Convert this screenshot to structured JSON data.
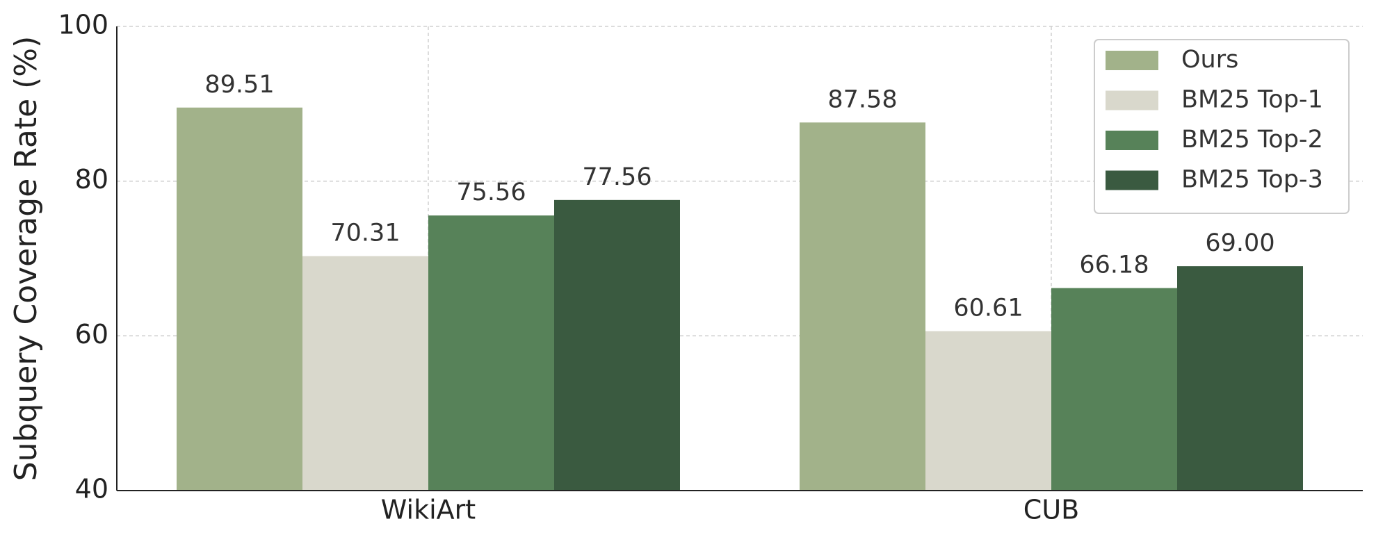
{
  "chart_data": {
    "type": "bar",
    "y_label": "Subquery Coverage Rate (%)",
    "categories": [
      "WikiArt",
      "CUB"
    ],
    "series": [
      {
        "name": "Ours",
        "color": "#a2b28a",
        "values": [
          89.51,
          87.58
        ],
        "value_labels": [
          "89.51",
          "87.58"
        ]
      },
      {
        "name": "BM25 Top-1",
        "color": "#d9d8cc",
        "values": [
          70.31,
          60.61
        ],
        "value_labels": [
          "70.31",
          "60.61"
        ]
      },
      {
        "name": "BM25 Top-2",
        "color": "#578259",
        "values": [
          75.56,
          66.18
        ],
        "value_labels": [
          "75.56",
          "66.18"
        ]
      },
      {
        "name": "BM25 Top-3",
        "color": "#3a5a40",
        "values": [
          77.56,
          69.0
        ],
        "value_labels": [
          "77.56",
          "69.00"
        ]
      }
    ],
    "ylim": [
      40,
      100
    ],
    "yticks": [
      40,
      60,
      80,
      100
    ],
    "grid": true,
    "legend": "upper right"
  }
}
